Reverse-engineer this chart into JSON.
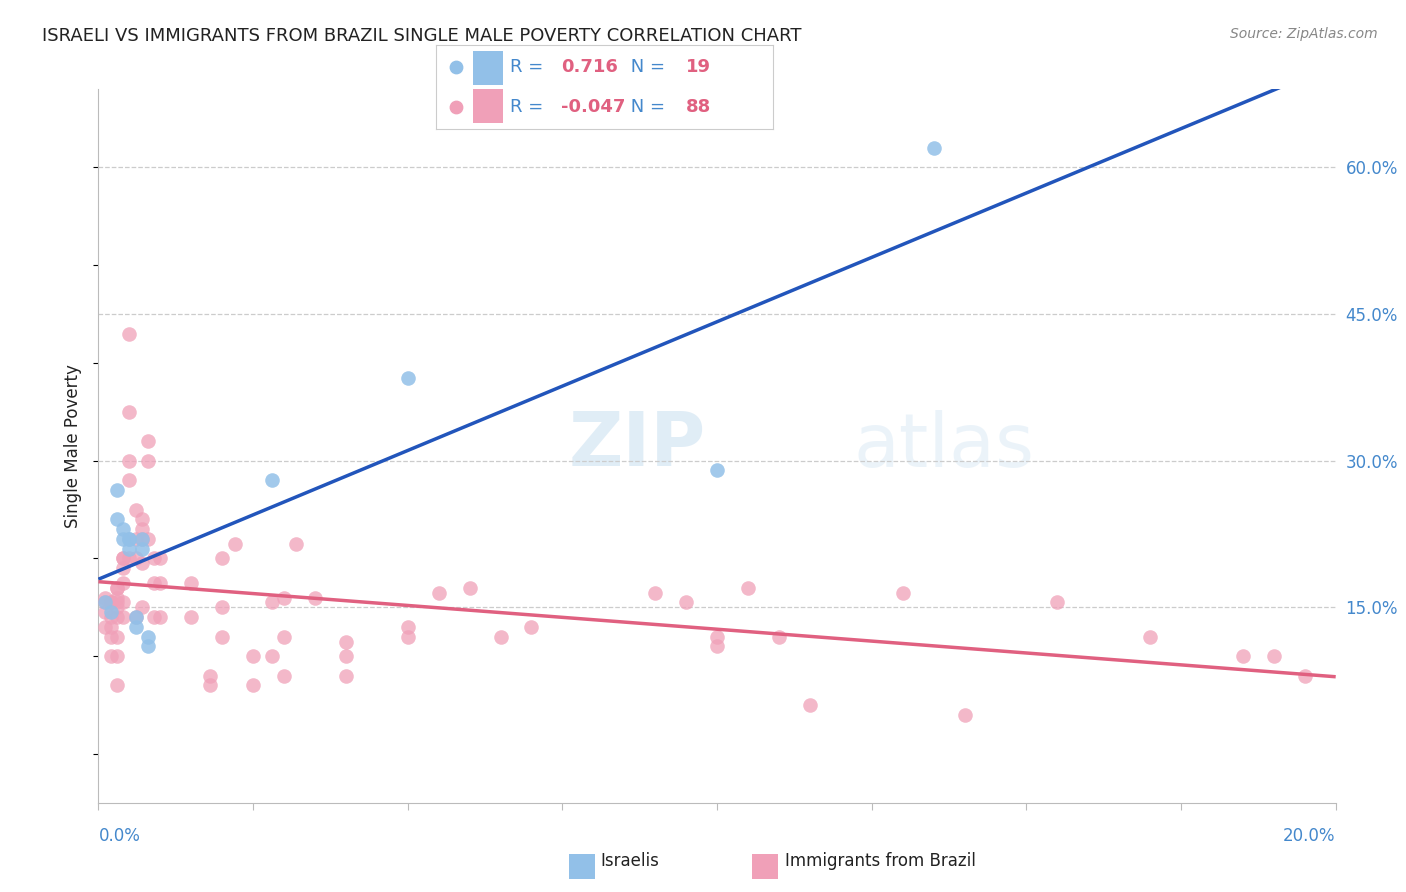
{
  "title": "ISRAELI VS IMMIGRANTS FROM BRAZIL SINGLE MALE POVERTY CORRELATION CHART",
  "source": "Source: ZipAtlas.com",
  "ylabel": "Single Male Poverty",
  "ytick_labels": [
    "15.0%",
    "30.0%",
    "45.0%",
    "60.0%"
  ],
  "ytick_values": [
    0.15,
    0.3,
    0.45,
    0.6
  ],
  "xlim": [
    0.0,
    0.2
  ],
  "ylim": [
    -0.05,
    0.68
  ],
  "israeli_color": "#92c0e8",
  "brazil_color": "#f0a0b8",
  "israeli_line_color": "#2255bb",
  "brazil_line_color": "#e06080",
  "isr_r": "0.716",
  "isr_n": "19",
  "bra_r": "-0.047",
  "bra_n": "88",
  "israelis_x": [
    0.001,
    0.002,
    0.003,
    0.003,
    0.004,
    0.004,
    0.005,
    0.005,
    0.005,
    0.006,
    0.006,
    0.007,
    0.007,
    0.008,
    0.008,
    0.028,
    0.05,
    0.1,
    0.135
  ],
  "israelis_y": [
    0.155,
    0.145,
    0.27,
    0.24,
    0.23,
    0.22,
    0.22,
    0.22,
    0.21,
    0.13,
    0.14,
    0.22,
    0.21,
    0.12,
    0.11,
    0.28,
    0.385,
    0.29,
    0.62
  ],
  "brazil_x": [
    0.001,
    0.001,
    0.001,
    0.001,
    0.002,
    0.002,
    0.002,
    0.002,
    0.002,
    0.002,
    0.003,
    0.003,
    0.003,
    0.003,
    0.003,
    0.003,
    0.003,
    0.003,
    0.003,
    0.004,
    0.004,
    0.004,
    0.004,
    0.004,
    0.004,
    0.005,
    0.005,
    0.005,
    0.005,
    0.005,
    0.006,
    0.006,
    0.006,
    0.006,
    0.007,
    0.007,
    0.007,
    0.007,
    0.007,
    0.008,
    0.008,
    0.008,
    0.009,
    0.009,
    0.009,
    0.01,
    0.01,
    0.01,
    0.015,
    0.015,
    0.018,
    0.018,
    0.02,
    0.02,
    0.02,
    0.022,
    0.025,
    0.025,
    0.028,
    0.028,
    0.03,
    0.03,
    0.03,
    0.032,
    0.035,
    0.04,
    0.04,
    0.04,
    0.05,
    0.05,
    0.055,
    0.06,
    0.065,
    0.07,
    0.09,
    0.095,
    0.1,
    0.1,
    0.105,
    0.11,
    0.115,
    0.13,
    0.14,
    0.155,
    0.17,
    0.185,
    0.19,
    0.195
  ],
  "brazil_y": [
    0.155,
    0.16,
    0.145,
    0.13,
    0.155,
    0.155,
    0.14,
    0.13,
    0.12,
    0.1,
    0.17,
    0.17,
    0.16,
    0.155,
    0.15,
    0.14,
    0.12,
    0.1,
    0.07,
    0.2,
    0.2,
    0.19,
    0.175,
    0.155,
    0.14,
    0.43,
    0.35,
    0.3,
    0.28,
    0.2,
    0.25,
    0.22,
    0.2,
    0.14,
    0.24,
    0.23,
    0.22,
    0.195,
    0.15,
    0.32,
    0.3,
    0.22,
    0.2,
    0.175,
    0.14,
    0.2,
    0.175,
    0.14,
    0.175,
    0.14,
    0.08,
    0.07,
    0.2,
    0.15,
    0.12,
    0.215,
    0.1,
    0.07,
    0.155,
    0.1,
    0.16,
    0.12,
    0.08,
    0.215,
    0.16,
    0.115,
    0.1,
    0.08,
    0.13,
    0.12,
    0.165,
    0.17,
    0.12,
    0.13,
    0.165,
    0.155,
    0.12,
    0.11,
    0.17,
    0.12,
    0.05,
    0.165,
    0.04,
    0.155,
    0.12,
    0.1,
    0.1,
    0.08
  ],
  "text_blue": "#4488cc",
  "text_pink": "#e06080",
  "text_dark": "#222222",
  "text_gray": "#888888"
}
